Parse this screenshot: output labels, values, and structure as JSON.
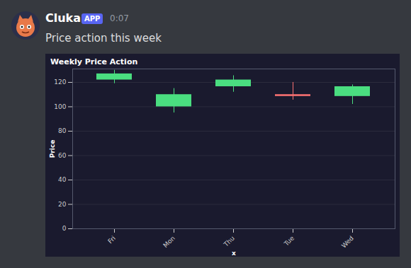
{
  "message": {
    "author": "Cluka",
    "badge": "APP",
    "time": "0:07",
    "text": "Price action this week"
  },
  "chart_data": {
    "type": "candlestick",
    "title": "Weekly Price Action",
    "x_label": "x",
    "y_label": "Price",
    "categories": [
      "Fri",
      "Mon",
      "Thu",
      "Tue",
      "Wed"
    ],
    "open": [
      122,
      100,
      116.5,
      110,
      108.5
    ],
    "high": [
      130,
      115,
      125.5,
      120,
      118
    ],
    "low": [
      119,
      95,
      112,
      105.5,
      102
    ],
    "close": [
      127,
      110,
      122,
      108.5,
      116.5
    ],
    "colors": [
      "#4ade80",
      "#4ade80",
      "#4ade80",
      "#f87171",
      "#4ade80"
    ],
    "ylim": [
      0,
      131
    ],
    "yticks": [
      0,
      20,
      40,
      60,
      80,
      100,
      120
    ],
    "grid": true
  }
}
